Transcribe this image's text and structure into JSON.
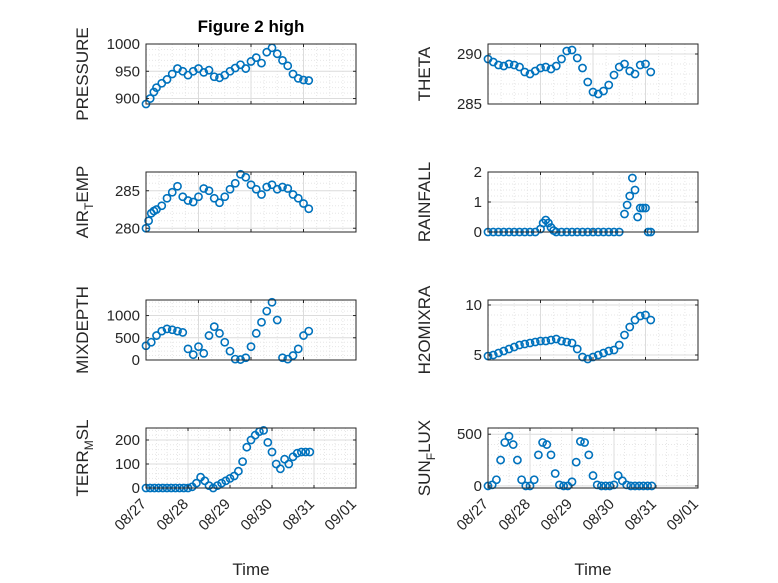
{
  "chart_data": [
    {
      "type": "scatter",
      "title": "Figure 2 high",
      "ylabel": "PRESSURE",
      "xlabel": "",
      "ylim": [
        890,
        1000
      ],
      "yticks": [
        "900",
        "950",
        "1000"
      ],
      "yticks_values": [
        900,
        950,
        1000
      ],
      "xlim": [
        0,
        4
      ],
      "x_tick_labels": [],
      "marker_color": "#0072BD",
      "grid": true,
      "x": [
        0,
        0.08,
        0.15,
        0.2,
        0.3,
        0.4,
        0.5,
        0.6,
        0.7,
        0.8,
        0.9,
        1,
        1.1,
        1.2,
        1.3,
        1.4,
        1.5,
        1.6,
        1.7,
        1.8,
        1.9,
        2,
        2.1,
        2.2,
        2.3,
        2.4,
        2.5,
        2.6,
        2.7,
        2.8,
        2.9,
        3,
        3.1
      ],
      "y": [
        890,
        900,
        912,
        920,
        928,
        935,
        945,
        955,
        950,
        943,
        950,
        955,
        948,
        952,
        940,
        938,
        943,
        950,
        956,
        962,
        955,
        968,
        975,
        965,
        985,
        993,
        982,
        970,
        960,
        945,
        937,
        934,
        933
      ]
    },
    {
      "type": "scatter",
      "title": "",
      "ylabel": "THETA",
      "xlabel": "",
      "ylim": [
        285,
        291
      ],
      "yticks": [
        "285",
        "290"
      ],
      "yticks_values": [
        285,
        290
      ],
      "xlim": [
        0,
        4
      ],
      "x_tick_labels": [],
      "marker_color": "#0072BD",
      "grid": true,
      "x": [
        0,
        0.1,
        0.2,
        0.3,
        0.4,
        0.5,
        0.6,
        0.7,
        0.8,
        0.9,
        1,
        1.1,
        1.2,
        1.3,
        1.4,
        1.5,
        1.6,
        1.7,
        1.8,
        1.9,
        2,
        2.1,
        2.2,
        2.3,
        2.4,
        2.5,
        2.6,
        2.7,
        2.8,
        2.9,
        3,
        3.1
      ],
      "y": [
        289.5,
        289.2,
        288.9,
        288.8,
        289,
        288.9,
        288.7,
        288.2,
        288,
        288.3,
        288.6,
        288.7,
        288.5,
        288.8,
        289.5,
        290.3,
        290.4,
        289.6,
        288.6,
        287.2,
        286.2,
        286,
        286.3,
        286.9,
        287.9,
        288.7,
        289,
        288.3,
        288,
        288.9,
        289,
        288.2
      ]
    },
    {
      "type": "scatter",
      "title": "",
      "ylabel": "AIR_TEMP",
      "xlabel": "",
      "ylim": [
        279.5,
        287.5
      ],
      "yticks": [
        "280",
        "285"
      ],
      "yticks_values": [
        280,
        285
      ],
      "xlim": [
        0,
        4
      ],
      "x_tick_labels": [],
      "marker_color": "#0072BD",
      "grid": true,
      "x": [
        0,
        0.05,
        0.1,
        0.15,
        0.2,
        0.3,
        0.4,
        0.5,
        0.6,
        0.7,
        0.8,
        0.9,
        1,
        1.1,
        1.2,
        1.3,
        1.4,
        1.5,
        1.6,
        1.7,
        1.8,
        1.9,
        2,
        2.1,
        2.2,
        2.3,
        2.4,
        2.5,
        2.6,
        2.7,
        2.8,
        2.9,
        3,
        3.1
      ],
      "y": [
        280,
        281,
        282,
        282.3,
        282.5,
        283,
        284,
        284.8,
        285.6,
        284.2,
        283.7,
        283.5,
        284.2,
        285.3,
        285,
        284,
        283.4,
        284.2,
        285.2,
        286,
        287.2,
        286.8,
        285.8,
        285.2,
        284.5,
        285.5,
        285.8,
        285.2,
        285.5,
        285.3,
        284.5,
        284,
        283.3,
        282.6
      ]
    },
    {
      "type": "scatter",
      "title": "",
      "ylabel": "RAINFALL",
      "xlabel": "",
      "ylim": [
        0,
        2
      ],
      "yticks": [
        "0",
        "1",
        "2"
      ],
      "yticks_values": [
        0,
        1,
        2
      ],
      "xlim": [
        0,
        4
      ],
      "x_tick_labels": [],
      "marker_color": "#0072BD",
      "grid": true,
      "x": [
        0,
        0.1,
        0.2,
        0.3,
        0.4,
        0.5,
        0.6,
        0.7,
        0.8,
        0.9,
        1,
        1.05,
        1.1,
        1.15,
        1.2,
        1.25,
        1.3,
        1.4,
        1.5,
        1.6,
        1.7,
        1.8,
        1.9,
        2,
        2.1,
        2.2,
        2.3,
        2.4,
        2.5,
        2.6,
        2.65,
        2.7,
        2.75,
        2.8,
        2.85,
        2.9,
        2.95,
        3,
        3.05,
        3.1
      ],
      "y": [
        0,
        0,
        0,
        0,
        0,
        0,
        0,
        0,
        0,
        0,
        0.1,
        0.3,
        0.4,
        0.3,
        0.15,
        0.05,
        0,
        0,
        0,
        0,
        0,
        0,
        0,
        0,
        0,
        0,
        0,
        0,
        0,
        0.6,
        0.9,
        1.2,
        1.8,
        1.4,
        0.5,
        0.8,
        0.8,
        0.8,
        0,
        0
      ]
    },
    {
      "type": "scatter",
      "title": "",
      "ylabel": "MIXDEPTH",
      "xlabel": "",
      "ylim": [
        0,
        1350
      ],
      "yticks": [
        "0",
        "500",
        "1000"
      ],
      "yticks_values": [
        0,
        500,
        1000
      ],
      "xlim": [
        0,
        4
      ],
      "x_tick_labels": [],
      "marker_color": "#0072BD",
      "grid": true,
      "x": [
        0,
        0.1,
        0.2,
        0.3,
        0.4,
        0.5,
        0.6,
        0.7,
        0.8,
        0.9,
        1,
        1.1,
        1.2,
        1.3,
        1.4,
        1.5,
        1.6,
        1.7,
        1.8,
        1.9,
        2,
        2.1,
        2.2,
        2.3,
        2.4,
        2.5,
        2.6,
        2.7,
        2.8,
        2.9,
        3,
        3.1
      ],
      "y": [
        320,
        400,
        550,
        650,
        700,
        680,
        650,
        620,
        250,
        120,
        300,
        150,
        550,
        750,
        600,
        400,
        200,
        20,
        10,
        50,
        300,
        600,
        850,
        1100,
        1300,
        900,
        50,
        20,
        100,
        250,
        550,
        650
      ]
    },
    {
      "type": "scatter",
      "title": "",
      "ylabel": "H2OMIXRA",
      "xlabel": "",
      "ylim": [
        4.5,
        10.5
      ],
      "yticks": [
        "5",
        "10"
      ],
      "yticks_values": [
        5,
        10
      ],
      "xlim": [
        0,
        4
      ],
      "x_tick_labels": [],
      "marker_color": "#0072BD",
      "grid": true,
      "x": [
        0,
        0.1,
        0.2,
        0.3,
        0.4,
        0.5,
        0.6,
        0.7,
        0.8,
        0.9,
        1,
        1.1,
        1.2,
        1.3,
        1.4,
        1.5,
        1.6,
        1.7,
        1.8,
        1.9,
        2,
        2.1,
        2.2,
        2.3,
        2.4,
        2.5,
        2.6,
        2.7,
        2.8,
        2.9,
        3,
        3.1
      ],
      "y": [
        4.9,
        5,
        5.2,
        5.4,
        5.6,
        5.8,
        6,
        6.1,
        6.2,
        6.3,
        6.4,
        6.4,
        6.5,
        6.6,
        6.4,
        6.3,
        6.2,
        5.6,
        4.8,
        4.6,
        4.8,
        5,
        5.2,
        5.4,
        5.5,
        6,
        7,
        7.8,
        8.5,
        8.9,
        9,
        8.5
      ]
    },
    {
      "type": "scatter",
      "title": "",
      "ylabel": "TERR_MSL",
      "xlabel": "Time",
      "ylim": [
        0,
        250
      ],
      "yticks": [
        "0",
        "100",
        "200"
      ],
      "yticks_values": [
        0,
        100,
        200
      ],
      "xlim": [
        0,
        5
      ],
      "x_tick_labels": [
        "08/27",
        "08/28",
        "08/29",
        "08/30",
        "08/31",
        "09/01"
      ],
      "marker_color": "#0072BD",
      "grid": true,
      "x": [
        0,
        0.1,
        0.2,
        0.3,
        0.4,
        0.5,
        0.6,
        0.7,
        0.8,
        0.9,
        1,
        1.1,
        1.2,
        1.3,
        1.4,
        1.5,
        1.6,
        1.7,
        1.8,
        1.9,
        2,
        2.1,
        2.2,
        2.3,
        2.4,
        2.5,
        2.6,
        2.7,
        2.8,
        2.9,
        3,
        3.1,
        3.2,
        3.3,
        3.4,
        3.5,
        3.6,
        3.7,
        3.8,
        3.9
      ],
      "y": [
        0,
        0,
        0,
        0,
        0,
        0,
        0,
        0,
        0,
        0,
        0,
        5,
        20,
        45,
        30,
        10,
        0,
        10,
        20,
        30,
        40,
        50,
        70,
        110,
        170,
        200,
        220,
        235,
        240,
        190,
        150,
        100,
        80,
        120,
        100,
        130,
        145,
        150,
        150,
        150
      ]
    },
    {
      "type": "scatter",
      "title": "",
      "ylabel": "SUN_FLUX",
      "xlabel": "Time",
      "ylim": [
        -20,
        560
      ],
      "yticks": [
        "0",
        "500"
      ],
      "yticks_values": [
        0,
        500
      ],
      "xlim": [
        0,
        5
      ],
      "x_tick_labels": [
        "08/27",
        "08/28",
        "08/29",
        "08/30",
        "08/31",
        "09/01"
      ],
      "marker_color": "#0072BD",
      "grid": true,
      "x": [
        0,
        0.1,
        0.2,
        0.3,
        0.4,
        0.5,
        0.6,
        0.7,
        0.8,
        0.9,
        1,
        1.1,
        1.2,
        1.3,
        1.4,
        1.5,
        1.6,
        1.7,
        1.8,
        1.9,
        2,
        2.1,
        2.2,
        2.3,
        2.4,
        2.5,
        2.6,
        2.7,
        2.8,
        2.9,
        3,
        3.1,
        3.2,
        3.3,
        3.4,
        3.5,
        3.6,
        3.7,
        3.8,
        3.9
      ],
      "y": [
        0,
        10,
        60,
        250,
        420,
        480,
        400,
        250,
        60,
        0,
        0,
        60,
        300,
        420,
        400,
        300,
        120,
        10,
        0,
        0,
        40,
        230,
        430,
        420,
        300,
        100,
        10,
        0,
        0,
        0,
        10,
        100,
        50,
        10,
        0,
        0,
        0,
        0,
        0,
        0
      ]
    }
  ]
}
